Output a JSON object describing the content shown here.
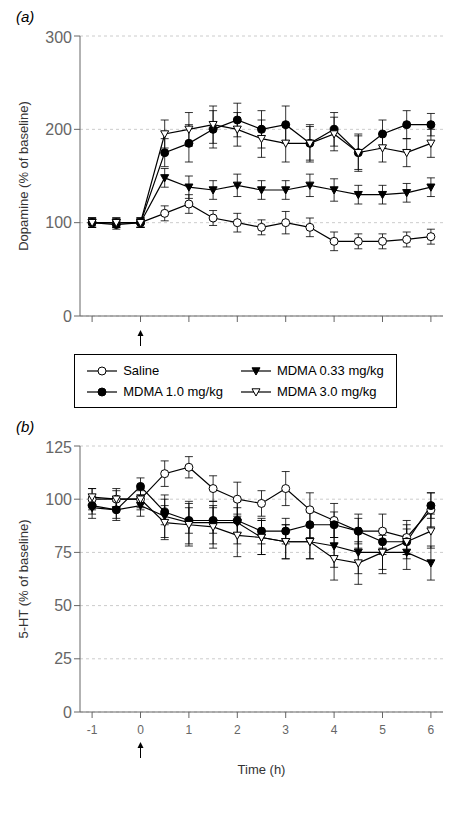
{
  "chart_data": [
    {
      "type": "line",
      "title": "(a)",
      "x": [
        -1,
        -0.5,
        0,
        0.5,
        1,
        1.5,
        2,
        2.5,
        3,
        3.5,
        4,
        4.5,
        5,
        5.5,
        6
      ],
      "xlim": [
        -1.25,
        6.25
      ],
      "xticks": [
        -1,
        0,
        1,
        2,
        3,
        4,
        5,
        6
      ],
      "ylim": [
        0,
        300
      ],
      "yticks": [
        0,
        100,
        200,
        300
      ],
      "ylabel": "Dopamine (% of baseline)",
      "tick_labels": "y",
      "legend": "bottom",
      "annotations": [
        {
          "type": "arrow",
          "x": 0
        }
      ],
      "series": [
        {
          "name": "Saline",
          "color": "#000000",
          "marker": "circle-open",
          "values": [
            100,
            100,
            100,
            110,
            120,
            105,
            100,
            95,
            100,
            95,
            80,
            80,
            80,
            82,
            85
          ],
          "yerr": [
            5,
            5,
            5,
            8,
            10,
            8,
            10,
            8,
            12,
            10,
            10,
            8,
            8,
            8,
            8
          ]
        },
        {
          "name": "MDMA 0.33 mg/kg",
          "color": "#000000",
          "marker": "triangle-down",
          "values": [
            100,
            100,
            100,
            148,
            138,
            135,
            140,
            135,
            135,
            140,
            135,
            130,
            130,
            132,
            138
          ],
          "yerr": [
            5,
            5,
            5,
            10,
            12,
            10,
            12,
            10,
            10,
            12,
            12,
            10,
            10,
            10,
            10
          ]
        },
        {
          "name": "MDMA 1.0 mg/kg",
          "color": "#000000",
          "marker": "circle",
          "values": [
            100,
            98,
            100,
            175,
            185,
            200,
            210,
            200,
            205,
            185,
            200,
            175,
            195,
            205,
            205
          ],
          "yerr": [
            5,
            5,
            5,
            15,
            20,
            20,
            18,
            20,
            20,
            20,
            18,
            20,
            15,
            15,
            12
          ]
        },
        {
          "name": "MDMA 3.0 mg/kg",
          "color": "#000000",
          "marker": "triangle-down-open",
          "values": [
            100,
            100,
            100,
            195,
            200,
            205,
            200,
            190,
            185,
            185,
            195,
            175,
            180,
            175,
            185
          ],
          "yerr": [
            5,
            5,
            5,
            15,
            18,
            20,
            18,
            20,
            20,
            18,
            18,
            18,
            15,
            15,
            15
          ]
        }
      ]
    },
    {
      "type": "line",
      "title": "(b)",
      "x": [
        -1,
        -0.5,
        0,
        0.5,
        1,
        1.5,
        2,
        2.5,
        3,
        3.5,
        4,
        4.5,
        5,
        5.5,
        6
      ],
      "xlim": [
        -1.25,
        6.25
      ],
      "xticks": [
        -1,
        0,
        1,
        2,
        3,
        4,
        5,
        6
      ],
      "ylim": [
        0,
        125
      ],
      "yticks": [
        0,
        25,
        50,
        75,
        100,
        125
      ],
      "xlabel": "Time (h)",
      "ylabel": "5-HT (% of baseline)",
      "annotations": [
        {
          "type": "arrow",
          "x": 0
        }
      ],
      "series": [
        {
          "name": "Saline",
          "color": "#000000",
          "marker": "circle-open",
          "values": [
            100,
            100,
            100,
            112,
            115,
            105,
            100,
            98,
            105,
            95,
            90,
            85,
            85,
            82,
            95
          ],
          "yerr": [
            5,
            5,
            5,
            6,
            5,
            6,
            8,
            6,
            8,
            8,
            8,
            8,
            8,
            8,
            8
          ]
        },
        {
          "name": "MDMA 0.33 mg/kg",
          "color": "#000000",
          "marker": "triangle-down",
          "values": [
            96,
            95,
            97,
            92,
            89,
            89,
            89,
            82,
            80,
            80,
            78,
            75,
            75,
            75,
            70
          ],
          "yerr": [
            5,
            5,
            5,
            10,
            10,
            10,
            10,
            8,
            8,
            8,
            10,
            10,
            10,
            8,
            8
          ]
        },
        {
          "name": "MDMA 1.0 mg/kg",
          "color": "#000000",
          "marker": "circle",
          "values": [
            97,
            95,
            106,
            94,
            90,
            90,
            90,
            85,
            85,
            88,
            88,
            85,
            80,
            80,
            97
          ],
          "yerr": [
            4,
            4,
            4,
            6,
            6,
            6,
            6,
            6,
            6,
            6,
            6,
            6,
            6,
            6,
            6
          ]
        },
        {
          "name": "MDMA 3.0 mg/kg",
          "color": "#000000",
          "marker": "triangle-down-open",
          "values": [
            101,
            100,
            100,
            89,
            88,
            87,
            83,
            82,
            80,
            80,
            72,
            70,
            75,
            80,
            85
          ],
          "yerr": [
            4,
            4,
            4,
            8,
            10,
            10,
            10,
            8,
            8,
            8,
            10,
            10,
            8,
            8,
            8
          ]
        }
      ]
    }
  ]
}
